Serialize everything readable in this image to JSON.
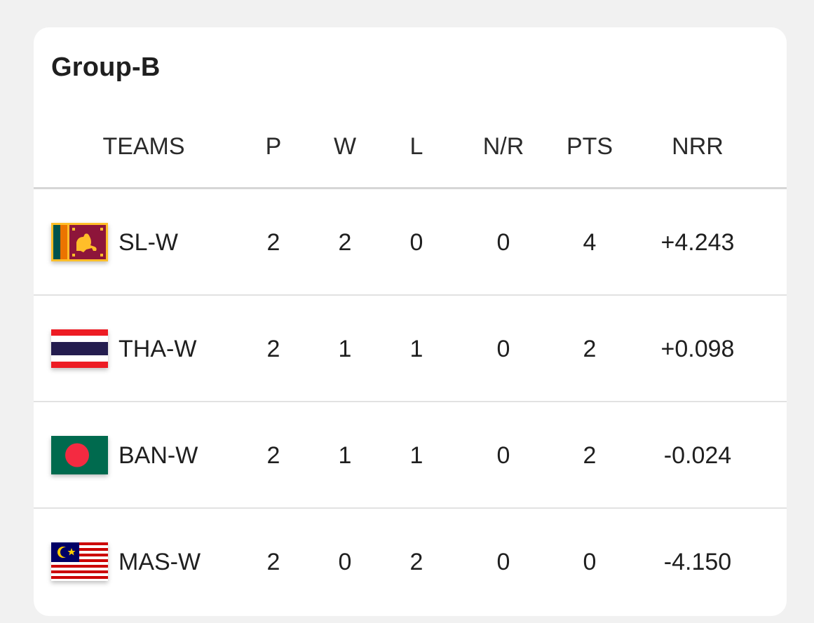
{
  "group": {
    "title": "Group-B"
  },
  "columns": {
    "team": "TEAMS",
    "played": "P",
    "won": "W",
    "lost": "L",
    "no_result": "N/R",
    "points": "PTS",
    "nrr": "NRR"
  },
  "rows": [
    {
      "team": "SL-W",
      "flag_icon": "sri-lanka-flag-icon",
      "played": "2",
      "won": "2",
      "lost": "0",
      "no_result": "0",
      "points": "4",
      "nrr": "+4.243"
    },
    {
      "team": "THA-W",
      "flag_icon": "thailand-flag-icon",
      "played": "2",
      "won": "1",
      "lost": "1",
      "no_result": "0",
      "points": "2",
      "nrr": "+0.098"
    },
    {
      "team": "BAN-W",
      "flag_icon": "bangladesh-flag-icon",
      "played": "2",
      "won": "1",
      "lost": "1",
      "no_result": "0",
      "points": "2",
      "nrr": "-0.024"
    },
    {
      "team": "MAS-W",
      "flag_icon": "malaysia-flag-icon",
      "played": "2",
      "won": "0",
      "lost": "2",
      "no_result": "0",
      "points": "0",
      "nrr": "-4.150"
    }
  ]
}
